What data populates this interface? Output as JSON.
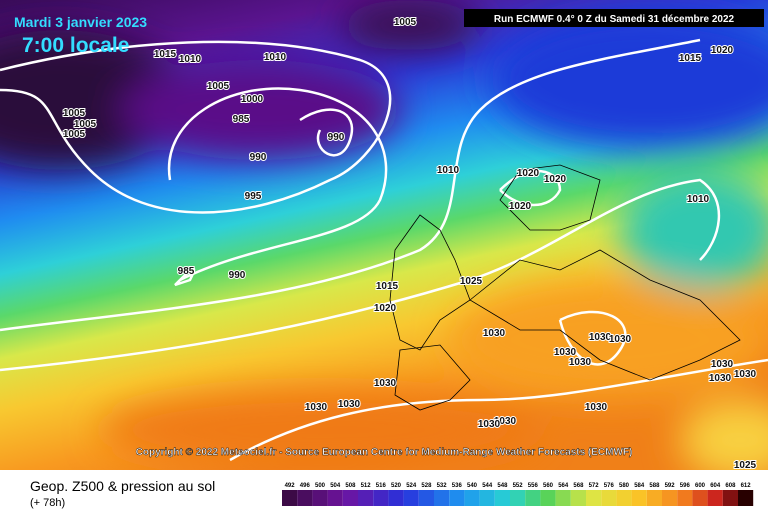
{
  "header": {
    "date": "Mardi 3 janvier 2023",
    "time": "7:00 locale",
    "run": "Run ECMWF 0.4° 0 Z du Samedi 31 décembre 2022"
  },
  "isobar_labels": [
    "1005",
    "1015",
    "1010",
    "1010",
    "1005",
    "1000",
    "985",
    "1005",
    "1005",
    "1005",
    "990",
    "990",
    "995",
    "1010",
    "1020",
    "1020",
    "1020",
    "1010",
    "1015",
    "1020",
    "985",
    "990",
    "1025",
    "1015",
    "1020",
    "1030",
    "1030",
    "1030",
    "1030",
    "1030",
    "1030",
    "1030",
    "1030",
    "1030",
    "1030",
    "1030",
    "1030",
    "1030",
    "1030",
    "1025"
  ],
  "copyright": "Copyright © 2022 Meteociel.fr - Source European Centre for Medium-Range Weather Forecasts (ECMWF)",
  "legend": {
    "title": "Geop. Z500 & pression au sol",
    "subtitle": "(+ 78h)",
    "scale": [
      492,
      496,
      500,
      504,
      508,
      512,
      516,
      520,
      524,
      528,
      532,
      536,
      540,
      544,
      548,
      552,
      556,
      560,
      564,
      568,
      572,
      576,
      580,
      584,
      588,
      592,
      596,
      600,
      604,
      608,
      612
    ]
  }
}
